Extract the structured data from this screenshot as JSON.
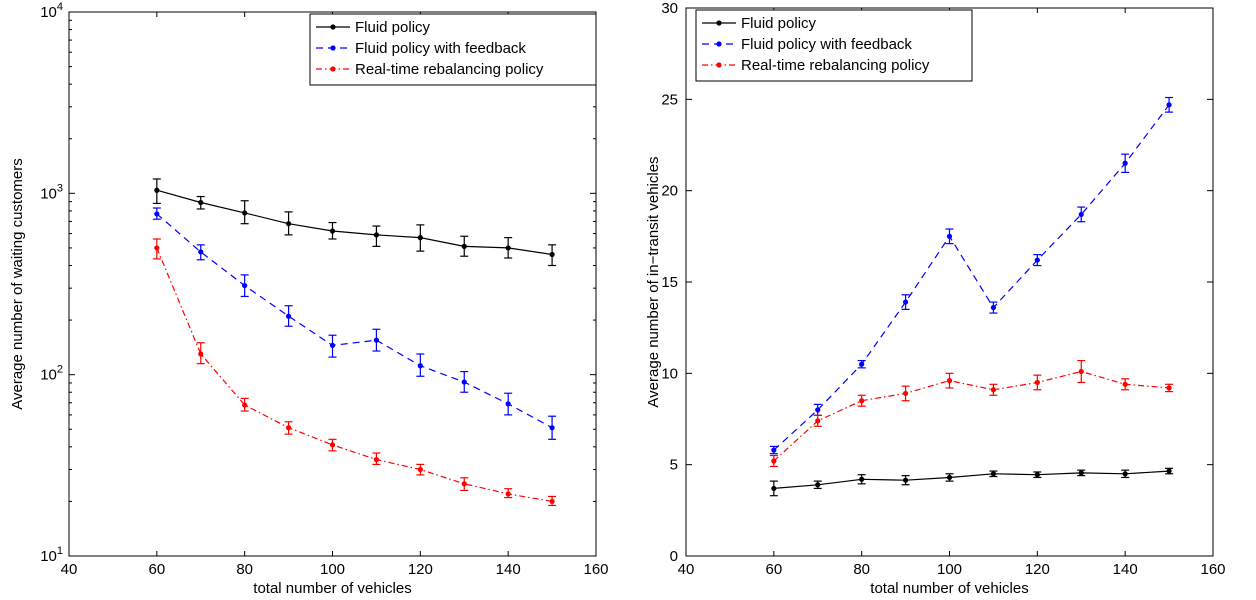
{
  "chart_data": [
    {
      "type": "line",
      "xlabel": "total number of vehicles",
      "ylabel": "Average number of waiting customers",
      "yscale": "log",
      "xlim": [
        40,
        160
      ],
      "ylim": [
        10,
        10000
      ],
      "xticks": [
        40,
        60,
        80,
        100,
        120,
        140,
        160
      ],
      "yticks": [
        10,
        100,
        1000,
        10000
      ],
      "grid": false,
      "legend_position": "top-right",
      "x": [
        60,
        70,
        80,
        90,
        100,
        110,
        120,
        130,
        140,
        150
      ],
      "series": [
        {
          "name": "Fluid policy",
          "color": "#000000",
          "dash": "solid",
          "values": [
            1040,
            890,
            780,
            680,
            620,
            590,
            570,
            510,
            500,
            460
          ],
          "err_low": [
            880,
            820,
            680,
            590,
            560,
            510,
            480,
            450,
            440,
            400
          ],
          "err_high": [
            1200,
            960,
            910,
            790,
            690,
            660,
            670,
            580,
            570,
            520
          ]
        },
        {
          "name": "Fluid policy with feedback",
          "color": "#0000ff",
          "dash": "dashed",
          "values": [
            770,
            475,
            310,
            210,
            145,
            155,
            112,
            91,
            69,
            51
          ],
          "err_low": [
            720,
            430,
            270,
            185,
            125,
            135,
            98,
            80,
            60,
            44
          ],
          "err_high": [
            830,
            520,
            355,
            240,
            165,
            178,
            130,
            104,
            79,
            59
          ]
        },
        {
          "name": "Real-time rebalancing policy",
          "color": "#ff0000",
          "dash": "dashdot",
          "values": [
            500,
            130,
            68,
            51,
            41,
            34,
            30,
            25,
            22,
            20
          ],
          "err_low": [
            435,
            115,
            63,
            47,
            38,
            32,
            28,
            23,
            21,
            19
          ],
          "err_high": [
            560,
            150,
            74,
            55,
            44,
            37,
            32,
            27,
            23.5,
            21.3
          ]
        }
      ]
    },
    {
      "type": "line",
      "xlabel": "total number of vehicles",
      "ylabel": "Average number of in−transit vehicles",
      "yscale": "linear",
      "xlim": [
        40,
        160
      ],
      "ylim": [
        0,
        30
      ],
      "xticks": [
        40,
        60,
        80,
        100,
        120,
        140,
        160
      ],
      "yticks": [
        0,
        5,
        10,
        15,
        20,
        25,
        30
      ],
      "grid": false,
      "legend_position": "top-left",
      "x": [
        60,
        70,
        80,
        90,
        100,
        110,
        120,
        130,
        140,
        150
      ],
      "series": [
        {
          "name": "Fluid policy",
          "color": "#000000",
          "dash": "solid",
          "values": [
            3.7,
            3.9,
            4.2,
            4.15,
            4.3,
            4.5,
            4.45,
            4.55,
            4.5,
            4.65
          ],
          "err_low": [
            3.3,
            3.7,
            3.95,
            3.9,
            4.1,
            4.35,
            4.3,
            4.4,
            4.3,
            4.5
          ],
          "err_high": [
            4.1,
            4.1,
            4.45,
            4.4,
            4.5,
            4.65,
            4.6,
            4.7,
            4.7,
            4.8
          ]
        },
        {
          "name": "Fluid policy with feedback",
          "color": "#0000ff",
          "dash": "dashed",
          "values": [
            5.8,
            8.0,
            10.5,
            13.9,
            17.5,
            13.6,
            16.2,
            18.7,
            21.5,
            24.7
          ],
          "err_low": [
            5.6,
            7.7,
            10.3,
            13.5,
            17.1,
            13.3,
            15.9,
            18.3,
            21.0,
            24.3
          ],
          "err_high": [
            6.0,
            8.3,
            10.7,
            14.3,
            17.9,
            13.9,
            16.5,
            19.1,
            22.0,
            25.1
          ]
        },
        {
          "name": "Real-time rebalancing policy",
          "color": "#ff0000",
          "dash": "dashdot",
          "values": [
            5.2,
            7.4,
            8.5,
            8.9,
            9.6,
            9.1,
            9.5,
            10.1,
            9.4,
            9.2
          ],
          "err_low": [
            4.9,
            7.1,
            8.2,
            8.5,
            9.2,
            8.8,
            9.1,
            9.5,
            9.1,
            9.0
          ],
          "err_high": [
            5.5,
            7.7,
            8.8,
            9.3,
            10.0,
            9.4,
            9.9,
            10.7,
            9.7,
            9.4
          ]
        }
      ]
    }
  ]
}
